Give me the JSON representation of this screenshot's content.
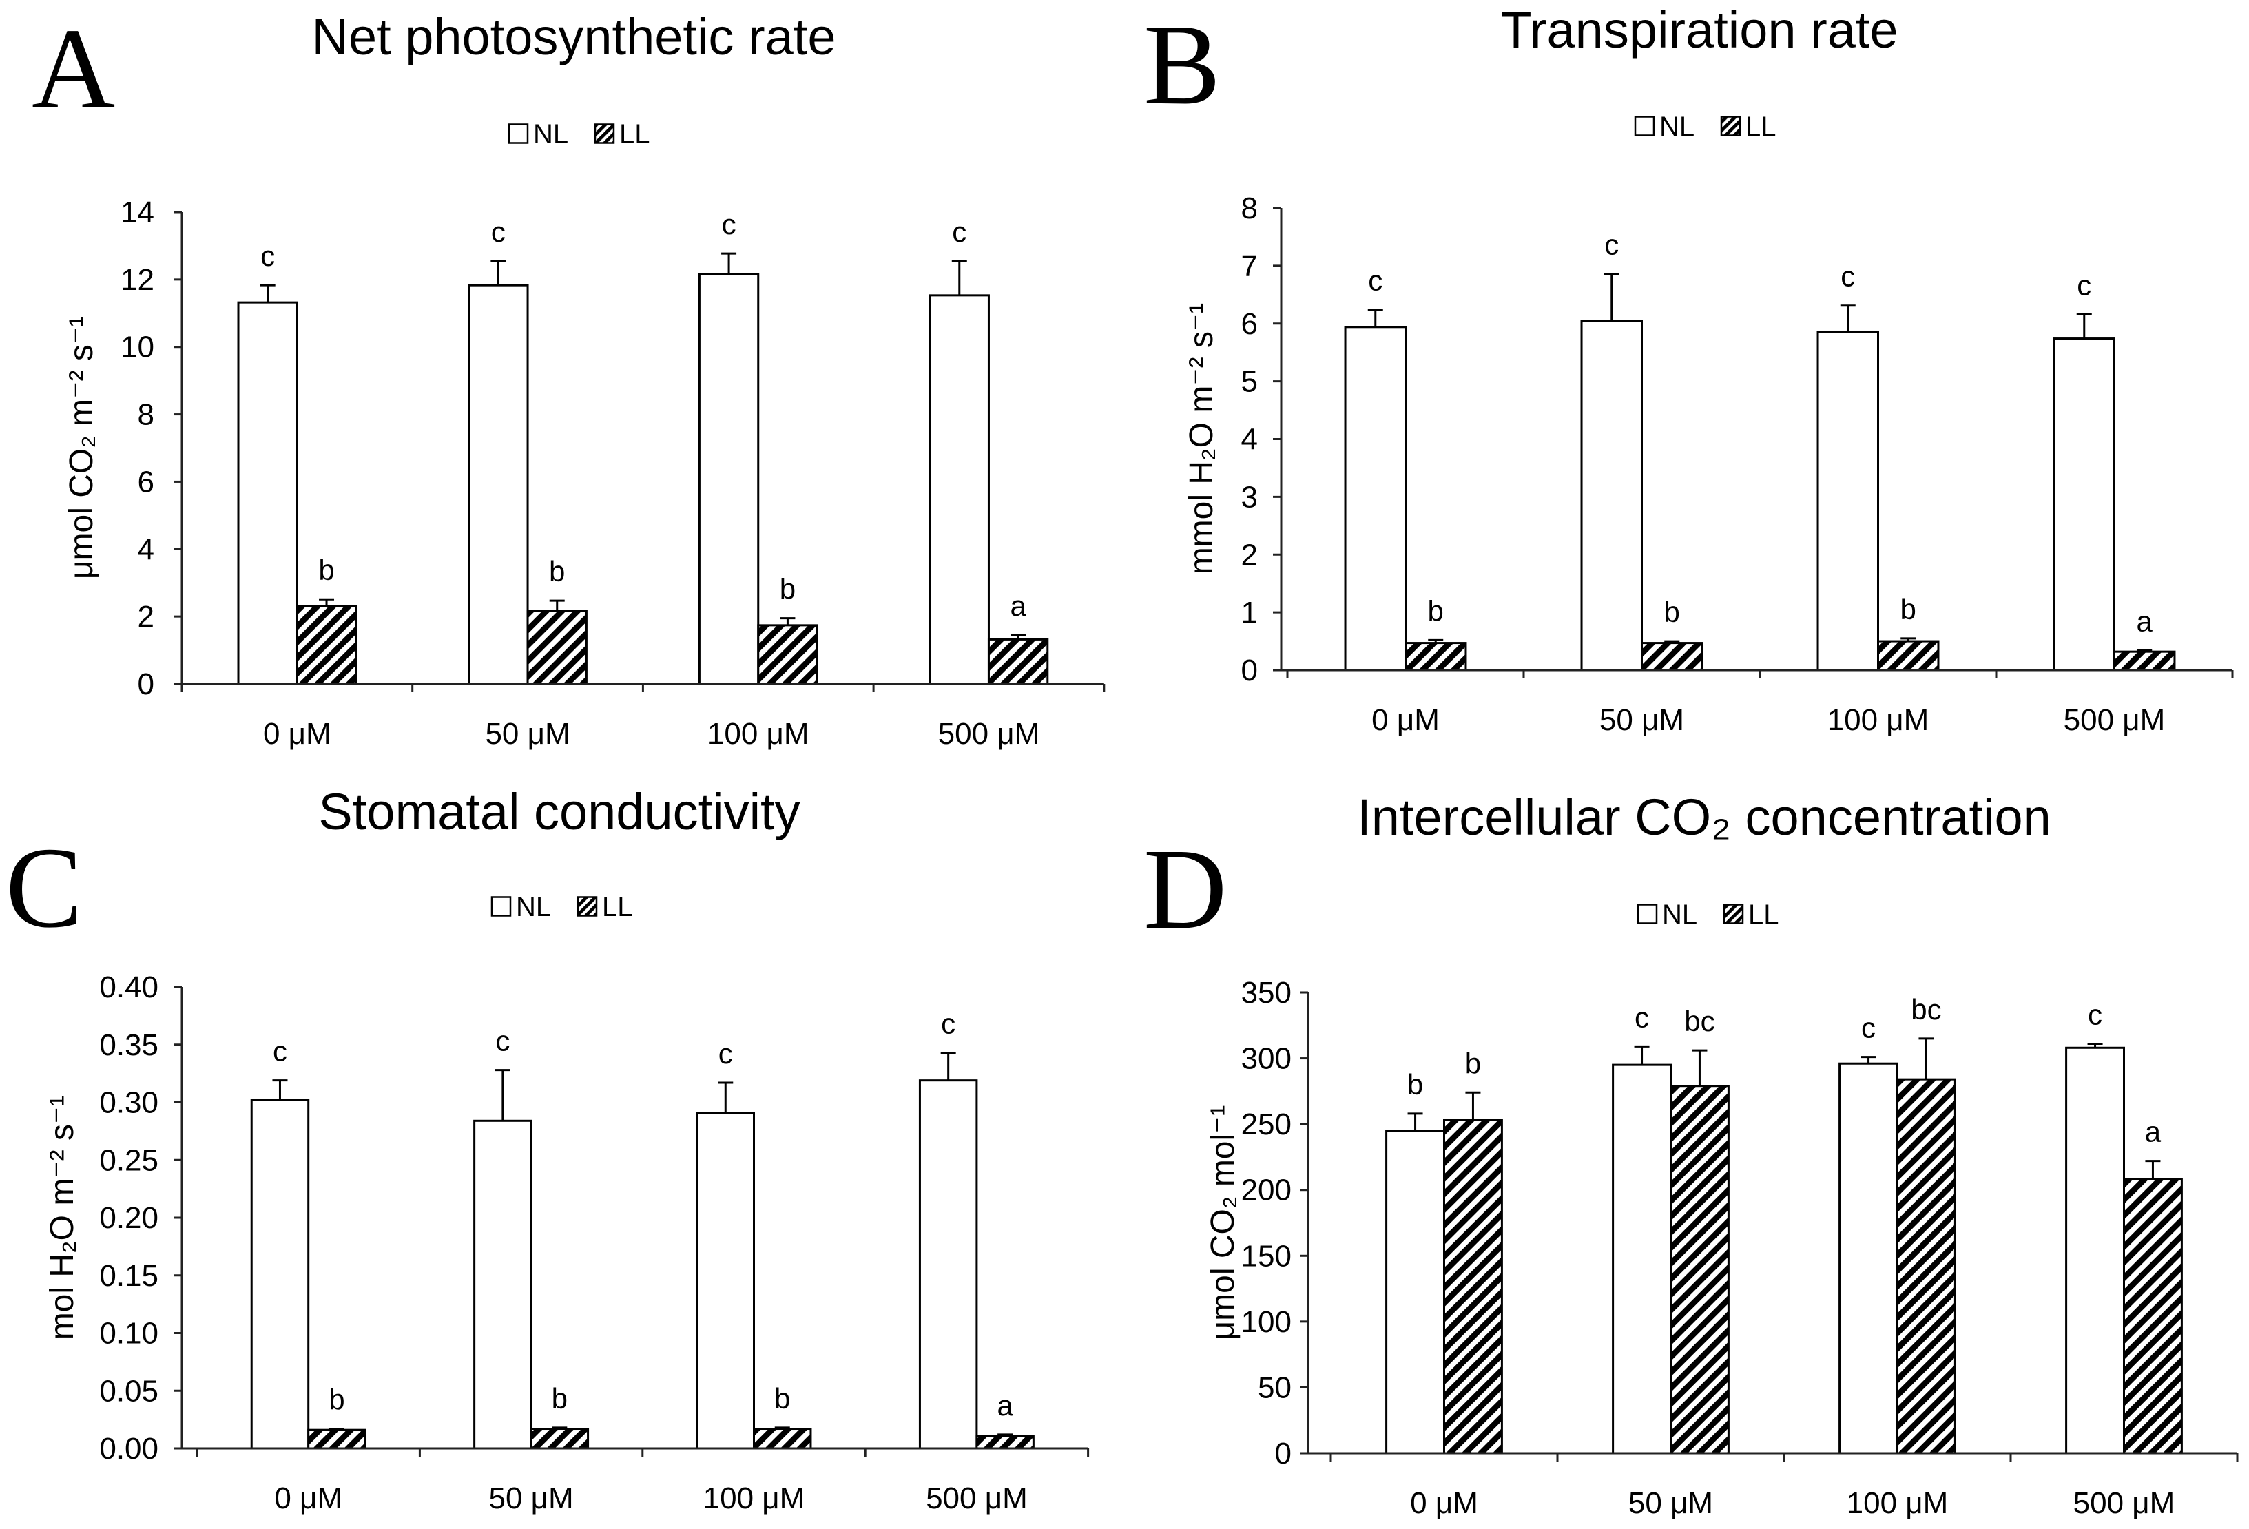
{
  "chart_data": [
    {
      "panel_label": "A",
      "type": "bar",
      "title": "Net photosynthetic rate",
      "xlabel": "",
      "ylabel": "μmol CO₂ m⁻² s⁻¹",
      "ylim": [
        0,
        14
      ],
      "grid": false,
      "yticks": [
        "0",
        "2",
        "4",
        "6",
        "8",
        "10",
        "12",
        "14"
      ],
      "categories": [
        "0 μM",
        "50 μM",
        "100 μM",
        "500 μM"
      ],
      "series": [
        {
          "name": "NL",
          "fill": "#ffffff",
          "hatched": false,
          "values": [
            11.32,
            11.83,
            12.17,
            11.53
          ],
          "errors": [
            0.51,
            0.72,
            0.6,
            1.02
          ],
          "letters": [
            "c",
            "c",
            "c",
            "c"
          ]
        },
        {
          "name": "LL",
          "fill": "#000000",
          "hatched": true,
          "values": [
            2.3,
            2.17,
            1.74,
            1.32
          ],
          "errors": [
            0.21,
            0.3,
            0.21,
            0.13
          ],
          "letters": [
            "b",
            "b",
            "b",
            "a"
          ]
        }
      ]
    },
    {
      "panel_label": "B",
      "type": "bar",
      "title": "Transpiration rate",
      "xlabel": "",
      "ylabel": "mmol H₂O m⁻² s⁻¹",
      "ylim": [
        0,
        8
      ],
      "grid": false,
      "yticks": [
        "0",
        "1",
        "2",
        "3",
        "4",
        "5",
        "6",
        "7",
        "8"
      ],
      "categories": [
        "0 μM",
        "50 μM",
        "100 μM",
        "500 μM"
      ],
      "series": [
        {
          "name": "NL",
          "fill": "#ffffff",
          "hatched": false,
          "values": [
            5.94,
            6.04,
            5.86,
            5.74
          ],
          "errors": [
            0.3,
            0.82,
            0.45,
            0.42
          ],
          "letters": [
            "c",
            "c",
            "c",
            "c"
          ]
        },
        {
          "name": "LL",
          "fill": "#000000",
          "hatched": true,
          "values": [
            0.47,
            0.47,
            0.5,
            0.32
          ],
          "errors": [
            0.05,
            0.03,
            0.05,
            0.02
          ],
          "letters": [
            "b",
            "b",
            "b",
            "a"
          ]
        }
      ]
    },
    {
      "panel_label": "C",
      "type": "bar",
      "title": "Stomatal conductivity",
      "xlabel": "",
      "ylabel": "mol H₂O m⁻² s⁻¹",
      "ylim": [
        0,
        0.4
      ],
      "grid": false,
      "yticks": [
        "0.00",
        "0.05",
        "0.10",
        "0.15",
        "0.20",
        "0.25",
        "0.30",
        "0.35",
        "0.40"
      ],
      "categories": [
        "0 μM",
        "50 μM",
        "100 μM",
        "500 μM"
      ],
      "series": [
        {
          "name": "NL",
          "fill": "#ffffff",
          "hatched": false,
          "values": [
            0.302,
            0.284,
            0.291,
            0.319
          ],
          "errors": [
            0.017,
            0.044,
            0.026,
            0.024
          ],
          "letters": [
            "c",
            "c",
            "c",
            "c"
          ]
        },
        {
          "name": "LL",
          "fill": "#000000",
          "hatched": true,
          "values": [
            0.016,
            0.017,
            0.017,
            0.011
          ],
          "errors": [
            0.001,
            0.001,
            0.001,
            0.001
          ],
          "letters": [
            "b",
            "b",
            "b",
            "a"
          ]
        }
      ]
    },
    {
      "panel_label": "D",
      "type": "bar",
      "title": "Intercellular CO₂ concentration",
      "xlabel": "",
      "ylabel": "μmol CO₂ mol⁻¹",
      "ylim": [
        0,
        350
      ],
      "grid": false,
      "yticks": [
        "0",
        "50",
        "100",
        "150",
        "200",
        "250",
        "300",
        "350"
      ],
      "categories": [
        "0 μM",
        "50 μM",
        "100 μM",
        "500 μM"
      ],
      "series": [
        {
          "name": "NL",
          "fill": "#ffffff",
          "hatched": false,
          "values": [
            245,
            295,
            296,
            308
          ],
          "errors": [
            13,
            14,
            5,
            3
          ],
          "letters": [
            "b",
            "c",
            "c",
            "c"
          ]
        },
        {
          "name": "LL",
          "fill": "#000000",
          "hatched": true,
          "values": [
            253,
            279,
            284,
            208
          ],
          "errors": [
            21,
            27,
            31,
            14
          ],
          "letters": [
            "b",
            "bc",
            "bc",
            "a"
          ]
        }
      ]
    }
  ]
}
